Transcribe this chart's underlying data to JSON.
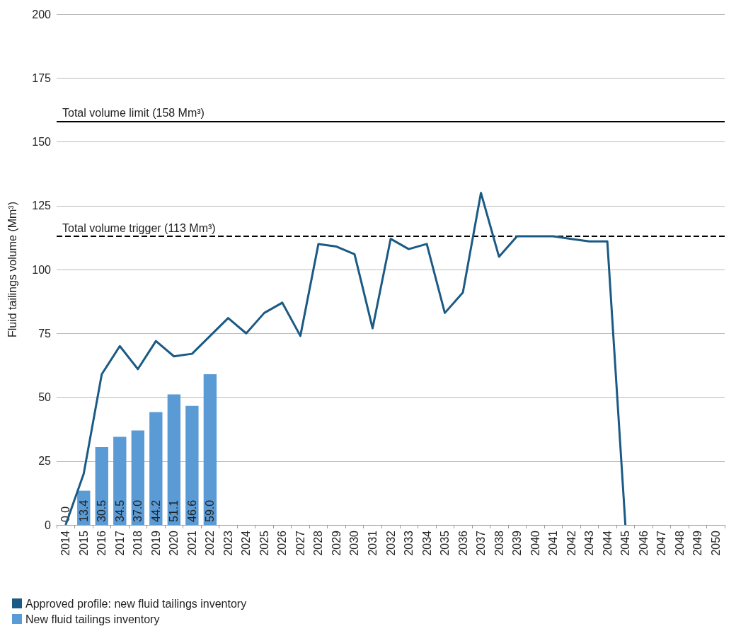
{
  "chart_data": {
    "type": "bar",
    "ylabel": "Fluid tailings volume (Mm³)",
    "categories": [
      "2014",
      "2015",
      "2016",
      "2017",
      "2018",
      "2019",
      "2020",
      "2021",
      "2022",
      "2023",
      "2024",
      "2025",
      "2026",
      "2027",
      "2028",
      "2029",
      "2030",
      "2031",
      "2032",
      "2033",
      "2034",
      "2035",
      "2036",
      "2037",
      "2038",
      "2039",
      "2040",
      "2041",
      "2042",
      "2043",
      "2044",
      "2045",
      "2046",
      "2047",
      "2048",
      "2049",
      "2050"
    ],
    "series": [
      {
        "name": "Approved profile: new fluid tailings inventory",
        "type": "line",
        "color": "#1a5a85",
        "values": [
          0,
          20,
          59,
          70,
          61,
          72,
          66,
          67,
          74,
          81,
          75,
          83,
          87,
          74,
          110,
          109,
          106,
          77,
          112,
          108,
          110,
          83,
          91,
          130,
          105,
          113,
          113,
          113,
          112,
          111,
          111,
          0,
          null,
          null,
          null,
          null,
          null
        ]
      },
      {
        "name": "New fluid tailings inventory",
        "color": "#5b9bd5",
        "values": [
          0.0,
          13.4,
          30.5,
          34.5,
          37.0,
          44.2,
          51.1,
          46.6,
          59.0,
          null,
          null,
          null,
          null,
          null,
          null,
          null,
          null,
          null,
          null,
          null,
          null,
          null,
          null,
          null,
          null,
          null,
          null,
          null,
          null,
          null,
          null,
          null,
          null,
          null,
          null,
          null,
          null
        ],
        "value_labels": [
          "0.0",
          "13.4",
          "30.5",
          "34.5",
          "37.0",
          "44.2",
          "51.1",
          "46.6",
          "59.0",
          null,
          null,
          null,
          null,
          null,
          null,
          null,
          null,
          null,
          null,
          null,
          null,
          null,
          null,
          null,
          null,
          null,
          null,
          null,
          null,
          null,
          null,
          null,
          null,
          null,
          null,
          null,
          null
        ]
      }
    ],
    "ylim": [
      0,
      200
    ],
    "yticks": [
      0,
      25,
      50,
      75,
      100,
      125,
      150,
      175,
      200
    ],
    "grid": "y",
    "ref_lines": [
      {
        "axis": "y",
        "value": 158,
        "label": "Total volume limit (158 Mm³)",
        "color": "#000000",
        "line_style": "solid"
      },
      {
        "axis": "y",
        "value": 113,
        "label": "Total volume trigger (113 Mm³)",
        "color": "#000000",
        "line_style": "dashed"
      }
    ],
    "legend": "bottom left",
    "marker": "none",
    "line_style": "solid"
  }
}
